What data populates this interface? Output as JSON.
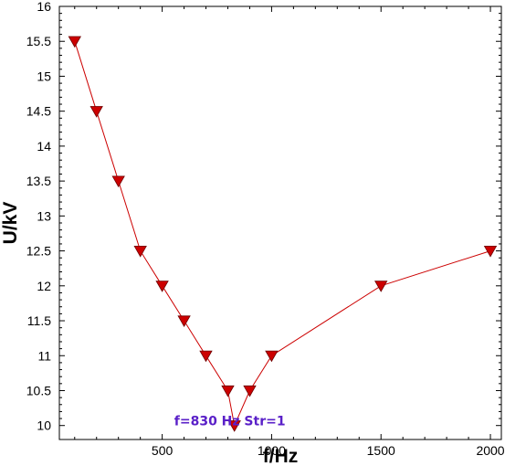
{
  "chart_data": {
    "type": "line",
    "xlabel": "f/Hz",
    "ylabel": "U/kV",
    "xlim": [
      30,
      2050
    ],
    "ylim": [
      9.8,
      16
    ],
    "x_ticks": [
      500,
      1000,
      1500,
      2000
    ],
    "y_ticks": [
      10,
      10.5,
      11,
      11.5,
      12,
      12.5,
      13,
      13.5,
      14,
      14.5,
      15,
      15.5,
      16
    ],
    "grid": false,
    "series": [
      {
        "color": "#cc0000",
        "marker": "triangle-down",
        "x": [
          100,
          200,
          300,
          400,
          500,
          600,
          700,
          800,
          830,
          900,
          1000,
          1500,
          2000
        ],
        "y": [
          15.5,
          14.5,
          13.5,
          12.5,
          12.0,
          11.5,
          11.0,
          10.5,
          10.0,
          10.5,
          11.0,
          12.0,
          12.5
        ]
      }
    ],
    "annotations": [
      {
        "text": "f=830 Hz  Str=1",
        "x": 830,
        "y": 10.0,
        "color": "#5a20c8"
      }
    ]
  }
}
